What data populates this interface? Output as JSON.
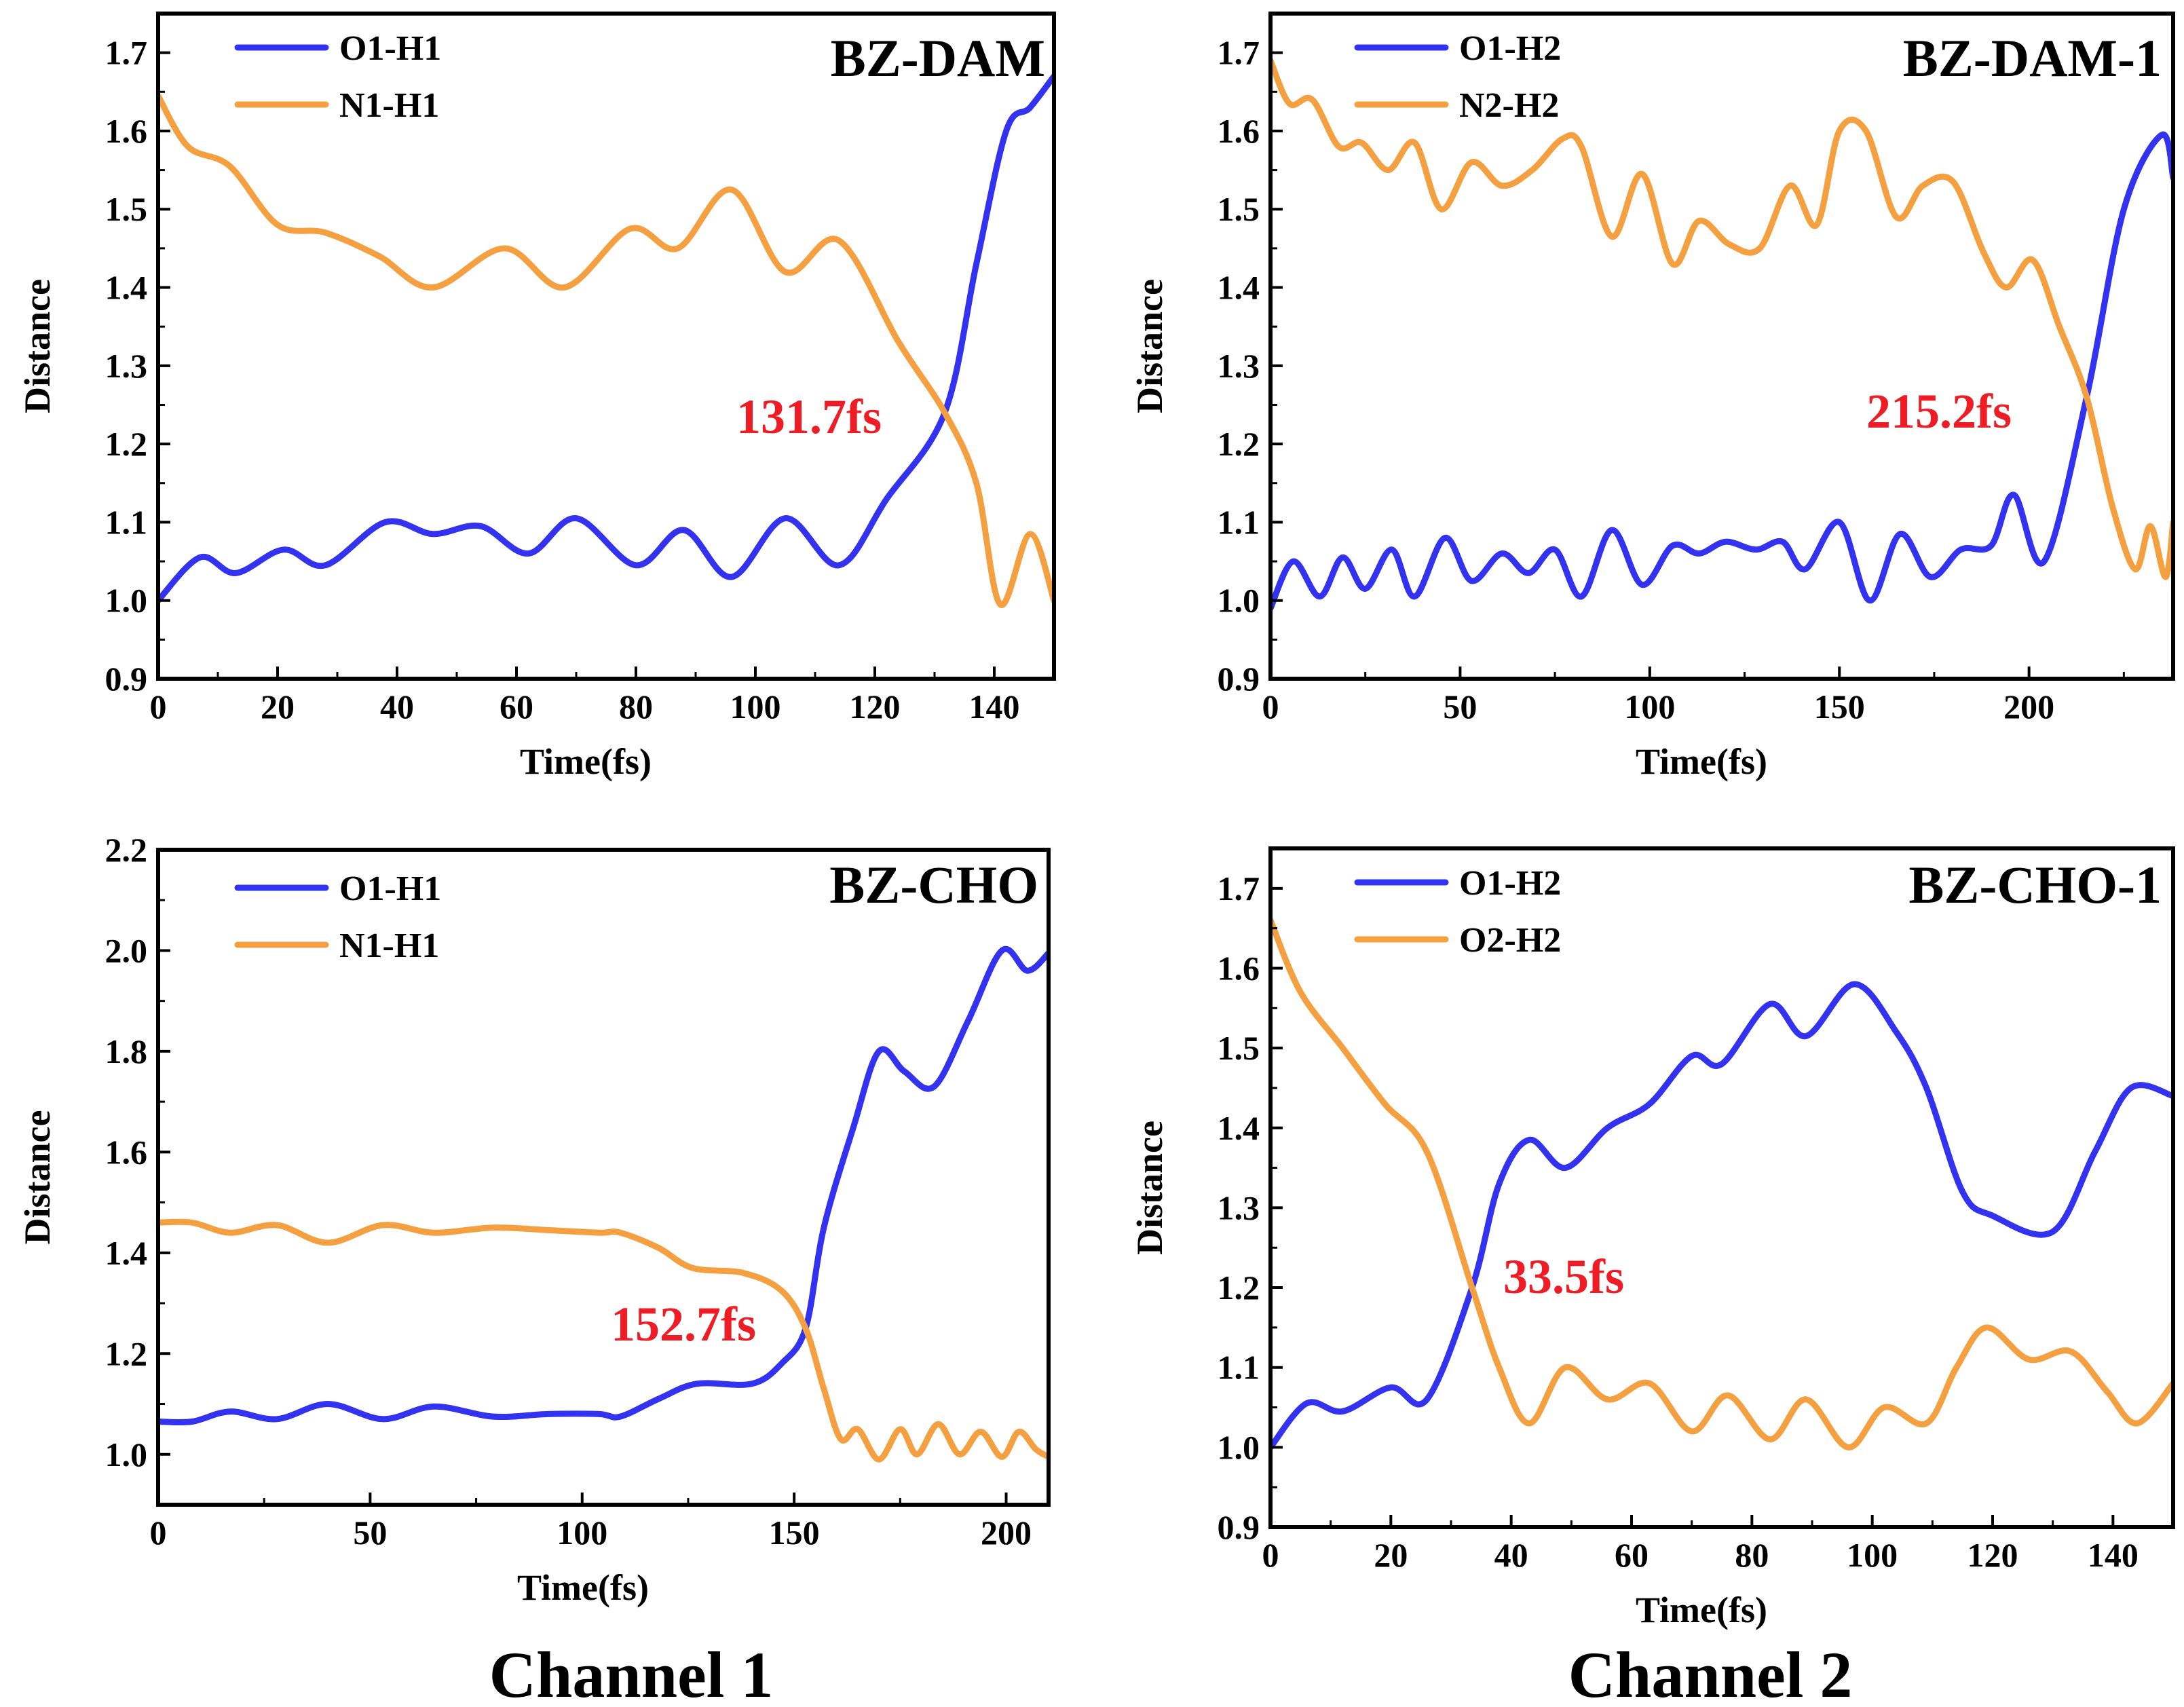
{
  "colors": {
    "blue": "#3232f0",
    "orange": "#f5a040",
    "crossing_text": "#ee1c24"
  },
  "captions": {
    "left": "Channel 1",
    "right": "Channel 2"
  },
  "chart_data": [
    {
      "type": "line",
      "title": "BZ-DAM",
      "xlabel": "Time(fs)",
      "ylabel": "Distance",
      "xlim": [
        0,
        150
      ],
      "ylim": [
        0.9,
        1.75
      ],
      "xticks": [
        0,
        20,
        40,
        60,
        80,
        100,
        120,
        140
      ],
      "yticks": [
        0.9,
        1.0,
        1.1,
        1.2,
        1.3,
        1.4,
        1.5,
        1.6,
        1.7
      ],
      "xtick_labels": [
        "0",
        "20",
        "40",
        "60",
        "80",
        "100",
        "120",
        "140"
      ],
      "ytick_labels": [
        "0.9",
        "1.0",
        "1.1",
        "1.2",
        "1.3",
        "1.4",
        "1.5",
        "1.6",
        "1.7"
      ],
      "legend": "top-left",
      "crossing_label": "131.7fs",
      "series": [
        {
          "name": "O1-H1",
          "color": "#3232f0",
          "x": [
            0,
            7,
            13,
            21,
            28,
            38,
            46,
            54,
            62,
            70,
            80,
            88,
            96,
            105,
            114,
            122,
            131.7,
            137,
            142,
            146,
            150
          ],
          "y": [
            1.0,
            1.055,
            1.035,
            1.065,
            1.045,
            1.1,
            1.085,
            1.095,
            1.06,
            1.105,
            1.045,
            1.09,
            1.03,
            1.105,
            1.045,
            1.13,
            1.24,
            1.43,
            1.6,
            1.63,
            1.67
          ]
        },
        {
          "name": "N1-H1",
          "color": "#f5a040",
          "x": [
            0,
            5,
            12,
            20,
            28,
            37,
            46,
            58,
            68,
            79,
            87,
            96,
            105,
            114,
            124,
            131.7,
            137,
            141,
            146,
            150
          ],
          "y": [
            1.645,
            1.58,
            1.555,
            1.48,
            1.47,
            1.44,
            1.4,
            1.45,
            1.4,
            1.475,
            1.45,
            1.525,
            1.42,
            1.46,
            1.33,
            1.24,
            1.15,
            0.995,
            1.085,
            1.0
          ]
        }
      ]
    },
    {
      "type": "line",
      "title": "BZ-DAM-1",
      "xlabel": "Time(fs)",
      "ylabel": "Distance",
      "xlim": [
        0,
        238
      ],
      "ylim": [
        0.9,
        1.75
      ],
      "xticks": [
        0,
        50,
        100,
        150,
        200
      ],
      "yticks": [
        0.9,
        1.0,
        1.1,
        1.2,
        1.3,
        1.4,
        1.5,
        1.6,
        1.7
      ],
      "xtick_labels": [
        "0",
        "50",
        "100",
        "150",
        "200"
      ],
      "ytick_labels": [
        "0.9",
        "1.0",
        "1.1",
        "1.2",
        "1.3",
        "1.4",
        "1.5",
        "1.6",
        "1.7"
      ],
      "legend": "top-left",
      "crossing_label": "215.2fs",
      "series": [
        {
          "name": "O1-H2",
          "color": "#3232f0",
          "x": [
            0,
            6,
            13,
            19,
            25,
            32,
            38,
            46,
            53,
            61,
            68,
            75,
            82,
            90,
            98,
            106,
            113,
            120,
            128,
            135,
            141,
            150,
            158,
            166,
            174,
            182,
            190,
            196,
            204,
            215.2,
            225,
            235,
            238
          ],
          "y": [
            0.99,
            1.05,
            1.005,
            1.055,
            1.015,
            1.065,
            1.005,
            1.08,
            1.025,
            1.06,
            1.035,
            1.065,
            1.005,
            1.09,
            1.02,
            1.07,
            1.06,
            1.075,
            1.065,
            1.075,
            1.04,
            1.1,
            1.0,
            1.085,
            1.03,
            1.065,
            1.07,
            1.135,
            1.05,
            1.26,
            1.5,
            1.595,
            1.54
          ]
        },
        {
          "name": "N2-H2",
          "color": "#f5a040",
          "x": [
            0,
            5,
            11,
            18,
            24,
            31,
            38,
            45,
            53,
            61,
            69,
            77,
            82,
            90,
            98,
            106,
            113,
            121,
            129,
            137,
            144,
            150,
            157,
            165,
            172,
            180,
            188,
            194,
            201,
            208,
            215.2,
            222,
            228,
            232,
            236,
            238
          ],
          "y": [
            1.69,
            1.635,
            1.64,
            1.58,
            1.585,
            1.55,
            1.585,
            1.5,
            1.56,
            1.53,
            1.55,
            1.59,
            1.58,
            1.465,
            1.545,
            1.43,
            1.485,
            1.455,
            1.45,
            1.53,
            1.48,
            1.6,
            1.6,
            1.49,
            1.53,
            1.535,
            1.445,
            1.4,
            1.435,
            1.35,
            1.26,
            1.12,
            1.04,
            1.095,
            1.03,
            1.1
          ]
        }
      ]
    },
    {
      "type": "line",
      "title": "BZ-CHO",
      "xlabel": "Time(fs)",
      "ylabel": "Distance",
      "xlim": [
        0,
        210
      ],
      "ylim": [
        0.9,
        2.2
      ],
      "xticks": [
        0,
        50,
        100,
        150,
        200
      ],
      "yticks": [
        1.0,
        1.2,
        1.4,
        1.6,
        1.8,
        2.0,
        2.2
      ],
      "xtick_labels": [
        "0",
        "50",
        "100",
        "150",
        "200"
      ],
      "ytick_labels": [
        "1.0",
        "1.2",
        "1.4",
        "1.6",
        "1.8",
        "2.0",
        "2.2"
      ],
      "legend": "top-left",
      "crossing_label": "152.7fs",
      "series": [
        {
          "name": "O1-H1",
          "color": "#3232f0",
          "x": [
            0,
            8,
            17,
            28,
            40,
            53,
            65,
            79,
            92,
            104,
            109,
            118,
            127,
            140,
            147,
            152.7,
            157,
            164,
            170,
            176,
            183,
            191,
            199,
            205,
            210
          ],
          "y": [
            1.065,
            1.065,
            1.085,
            1.07,
            1.1,
            1.07,
            1.095,
            1.075,
            1.08,
            1.08,
            1.075,
            1.11,
            1.14,
            1.14,
            1.18,
            1.25,
            1.45,
            1.65,
            1.8,
            1.76,
            1.73,
            1.86,
            2.0,
            1.96,
            1.995
          ]
        },
        {
          "name": "N1-H1",
          "color": "#f5a040",
          "x": [
            0,
            8,
            17,
            28,
            40,
            53,
            65,
            79,
            92,
            104,
            109,
            118,
            126,
            138,
            147,
            152.7,
            157,
            161,
            165,
            170,
            175,
            179,
            184,
            189,
            194,
            199,
            203,
            207,
            210
          ],
          "y": [
            1.46,
            1.46,
            1.44,
            1.455,
            1.42,
            1.455,
            1.44,
            1.45,
            1.445,
            1.44,
            1.44,
            1.41,
            1.37,
            1.36,
            1.325,
            1.25,
            1.13,
            1.03,
            1.05,
            0.99,
            1.05,
            1.0,
            1.06,
            1.0,
            1.045,
            0.995,
            1.045,
            1.01,
            0.995
          ]
        }
      ]
    },
    {
      "type": "line",
      "title": "BZ-CHO-1",
      "xlabel": "Time(fs)",
      "ylabel": "Distance",
      "xlim": [
        0,
        150
      ],
      "ylim": [
        0.9,
        1.75
      ],
      "xticks": [
        0,
        20,
        40,
        60,
        80,
        100,
        120,
        140
      ],
      "yticks": [
        0.9,
        1.0,
        1.1,
        1.2,
        1.3,
        1.4,
        1.5,
        1.6,
        1.7
      ],
      "xtick_labels": [
        "0",
        "20",
        "40",
        "60",
        "80",
        "100",
        "120",
        "140"
      ],
      "ytick_labels": [
        "0.9",
        "1.0",
        "1.1",
        "1.2",
        "1.3",
        "1.4",
        "1.5",
        "1.6",
        "1.7"
      ],
      "legend": "top-left",
      "crossing_label": "33.5fs",
      "series": [
        {
          "name": "O1-H2",
          "color": "#3232f0",
          "x": [
            0,
            6,
            12,
            20,
            26,
            33.5,
            38,
            43,
            49,
            56,
            63,
            70,
            75,
            83,
            89,
            97,
            104,
            109,
            115,
            120,
            130,
            137,
            143,
            150
          ],
          "y": [
            1.0,
            1.055,
            1.045,
            1.075,
            1.06,
            1.2,
            1.33,
            1.385,
            1.35,
            1.4,
            1.43,
            1.49,
            1.48,
            1.555,
            1.515,
            1.58,
            1.52,
            1.45,
            1.32,
            1.29,
            1.27,
            1.37,
            1.45,
            1.44
          ]
        },
        {
          "name": "O2-H2",
          "color": "#f5a040",
          "x": [
            0,
            5,
            12,
            19,
            26,
            33.5,
            38,
            43,
            49,
            56,
            63,
            70,
            76,
            83,
            89,
            96,
            102,
            109,
            114,
            119,
            126,
            133,
            139,
            144,
            150
          ],
          "y": [
            1.66,
            1.57,
            1.5,
            1.43,
            1.37,
            1.2,
            1.1,
            1.03,
            1.1,
            1.06,
            1.08,
            1.02,
            1.065,
            1.01,
            1.06,
            1.0,
            1.05,
            1.03,
            1.1,
            1.15,
            1.11,
            1.12,
            1.07,
            1.03,
            1.08
          ]
        }
      ]
    }
  ]
}
